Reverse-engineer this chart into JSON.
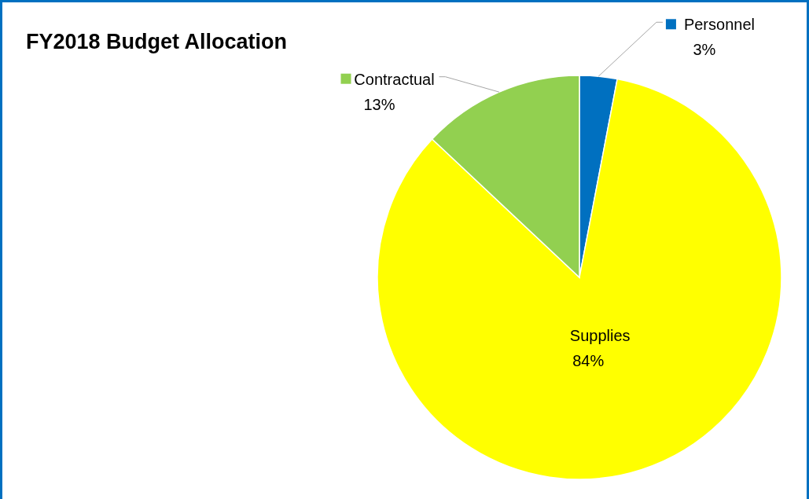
{
  "chart_data": {
    "type": "pie",
    "title": "FY2018 Budget Allocation",
    "categories": [
      "Personnel",
      "Supplies",
      "Contractual"
    ],
    "values": [
      3,
      84,
      13
    ],
    "colors": [
      "#0070c0",
      "#ffff00",
      "#92d050"
    ],
    "value_labels": [
      "3%",
      "84%",
      "13%"
    ],
    "legend": "top"
  }
}
